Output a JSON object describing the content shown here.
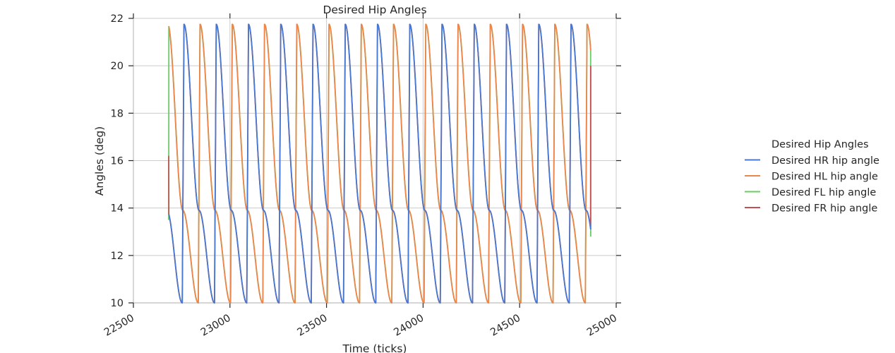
{
  "chart_data": {
    "type": "line",
    "title": "Desired Hip Angles",
    "xlabel": "Time (ticks)",
    "ylabel": "Angles (deg)",
    "xlim": [
      22500,
      25000
    ],
    "ylim": [
      10,
      22
    ],
    "xticks": [
      22500,
      23000,
      23500,
      24000,
      24500,
      25000
    ],
    "yticks": [
      10,
      12,
      14,
      16,
      18,
      20,
      22
    ],
    "grid": true,
    "legend": {
      "title": "Desired Hip Angles",
      "placement": "center-right outside",
      "entries": [
        "Desired HR hip angle",
        "Desired HL hip angle",
        "Desired FL hip angle",
        "Desired FR hip angle"
      ]
    },
    "colors": {
      "Desired HR hip angle": "#4878cf",
      "Desired HL hip angle": "#ee854a",
      "Desired FL hip angle": "#6acc65",
      "Desired FR hip angle": "#c44e52"
    },
    "x_range": [
      22683,
      24868
    ],
    "gait_period": 167,
    "max_angle": 21.75,
    "swing_peak_angle": 13.9,
    "min_angle": 10,
    "series": [
      {
        "name": "Desired HR hip angle",
        "color": "#4878cf",
        "phase_anchor_peak": 22762,
        "notes": "overlaps Desired FR hip angle; ends near 20.1 at x=24868"
      },
      {
        "name": "Desired HL hip angle",
        "color": "#ee854a",
        "phase_anchor_peak": 22845,
        "notes": "overlaps Desired FL hip angle"
      },
      {
        "name": "Desired FL hip angle",
        "color": "#6acc65",
        "phase_anchor_peak": 22845,
        "start_value": 13.5,
        "end_value": 12.8
      },
      {
        "name": "Desired FR hip angle",
        "color": "#c44e52",
        "phase_anchor_peak": 22762,
        "start_value": 16.2,
        "end_value": 20.0
      }
    ]
  }
}
